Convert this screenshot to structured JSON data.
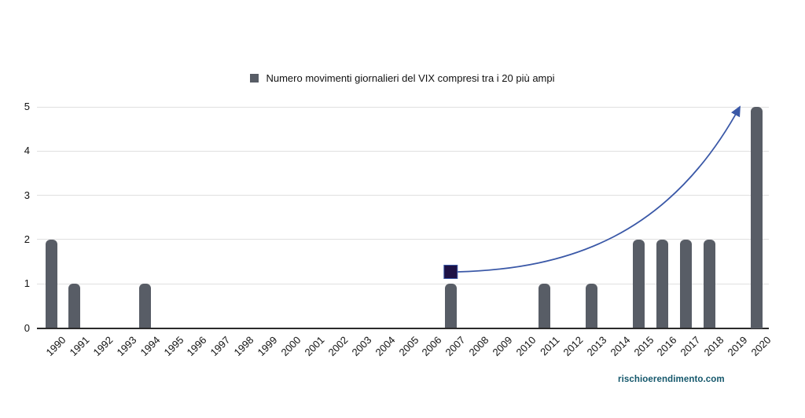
{
  "legend": {
    "label": "Numero movimenti giornalieri del VIX compresi tra i 20 più ampi"
  },
  "footer": {
    "watermark": "rischioerendimento.com"
  },
  "colors": {
    "bar": "#585D66",
    "legend_marker": "#585D66",
    "grid": "#E0E0E0",
    "axis": "#2B2B2B",
    "text": "#111111",
    "curve": "#3A58A7",
    "marker_fill": "#1D1145",
    "marker_stroke": "#3A58A7",
    "footer_text": "#14576B"
  },
  "chart_data": {
    "type": "bar",
    "title": "",
    "legend": [
      "Numero movimenti giornalieri del VIX compresi tra i 20 più ampi"
    ],
    "legend_position": "top-center",
    "categories": [
      "1990",
      "1991",
      "1992",
      "1993",
      "1994",
      "1995",
      "1996",
      "1997",
      "1998",
      "1999",
      "2000",
      "2001",
      "2002",
      "2003",
      "2004",
      "2005",
      "2006",
      "2007",
      "2008",
      "2009",
      "2010",
      "2011",
      "2012",
      "2013",
      "2014",
      "2015",
      "2016",
      "2017",
      "2018",
      "2019",
      "2020"
    ],
    "values": [
      2,
      1,
      0,
      0,
      1,
      0,
      0,
      0,
      0,
      0,
      0,
      0,
      0,
      0,
      0,
      0,
      0,
      1,
      0,
      0,
      0,
      1,
      0,
      1,
      0,
      2,
      2,
      2,
      2,
      0,
      5
    ],
    "xlabel": "",
    "ylabel": "",
    "ylim": [
      0,
      5
    ],
    "yticks": [
      0,
      1,
      2,
      3,
      4,
      5
    ],
    "grid": true,
    "annotation": {
      "type": "curved-arrow",
      "marker": {
        "shape": "square",
        "category": "2007",
        "value": 1.27
      },
      "arrow_end": {
        "category": "2019",
        "value": 5
      }
    }
  }
}
